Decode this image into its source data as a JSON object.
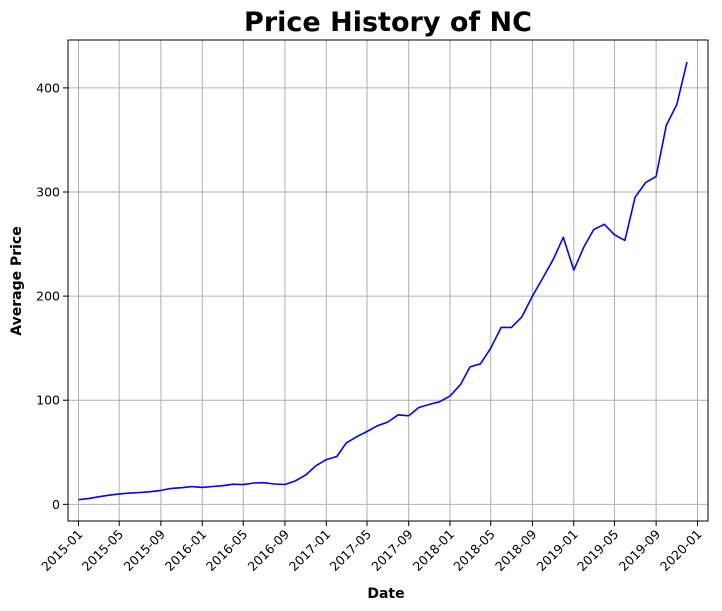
{
  "chart_data": {
    "type": "line",
    "title": "Price History of NC",
    "xlabel": "Date",
    "ylabel": "Average Price",
    "grid": true,
    "xlim": [
      "2014-12-01",
      "2020-02-01"
    ],
    "ylim": [
      -16,
      446
    ],
    "x_ticks": [
      "2015-01",
      "2015-05",
      "2015-09",
      "2016-01",
      "2016-05",
      "2016-09",
      "2017-01",
      "2017-05",
      "2017-09",
      "2018-01",
      "2018-05",
      "2018-09",
      "2019-01",
      "2019-05",
      "2019-09",
      "2020-01"
    ],
    "y_ticks": [
      0,
      100,
      200,
      300,
      400
    ],
    "series": [
      {
        "color": "#0000ff",
        "x": [
          "2015-01",
          "2015-02",
          "2015-03",
          "2015-04",
          "2015-05",
          "2015-06",
          "2015-07",
          "2015-08",
          "2015-09",
          "2015-10",
          "2015-11",
          "2015-12",
          "2016-01",
          "2016-02",
          "2016-03",
          "2016-04",
          "2016-05",
          "2016-06",
          "2016-07",
          "2016-08",
          "2016-09",
          "2016-10",
          "2016-11",
          "2016-12",
          "2017-01",
          "2017-02",
          "2017-03",
          "2017-04",
          "2017-05",
          "2017-06",
          "2017-07",
          "2017-08",
          "2017-09",
          "2017-10",
          "2017-11",
          "2017-12",
          "2018-01",
          "2018-02",
          "2018-03",
          "2018-04",
          "2018-05",
          "2018-06",
          "2018-07",
          "2018-08",
          "2018-09",
          "2018-10",
          "2018-11",
          "2018-12",
          "2019-01",
          "2019-02",
          "2019-03",
          "2019-04",
          "2019-05",
          "2019-06",
          "2019-07",
          "2019-08",
          "2019-09",
          "2019-10",
          "2019-11",
          "2019-12"
        ],
        "values": [
          4.5,
          5.7,
          7.2,
          8.8,
          10.0,
          10.8,
          11.4,
          12.1,
          13.4,
          15.3,
          16.0,
          17.0,
          16.3,
          17.1,
          17.9,
          19.3,
          19.0,
          20.5,
          20.8,
          19.5,
          19.1,
          22.4,
          28.1,
          37.0,
          43.0,
          46.0,
          59.0,
          65.0,
          70.0,
          75.5,
          79.0,
          86.0,
          85.0,
          93.0,
          96.0,
          98.5,
          104.0,
          115.0,
          132.0,
          135.0,
          150.0,
          170.0,
          170.0,
          180.0,
          200.0,
          217.0,
          235.0,
          256.5,
          225.0,
          248.0,
          264.0,
          269.0,
          259.0,
          253.5,
          295.0,
          309.0,
          315.0,
          364.0,
          384.0,
          425.0
        ]
      }
    ]
  }
}
